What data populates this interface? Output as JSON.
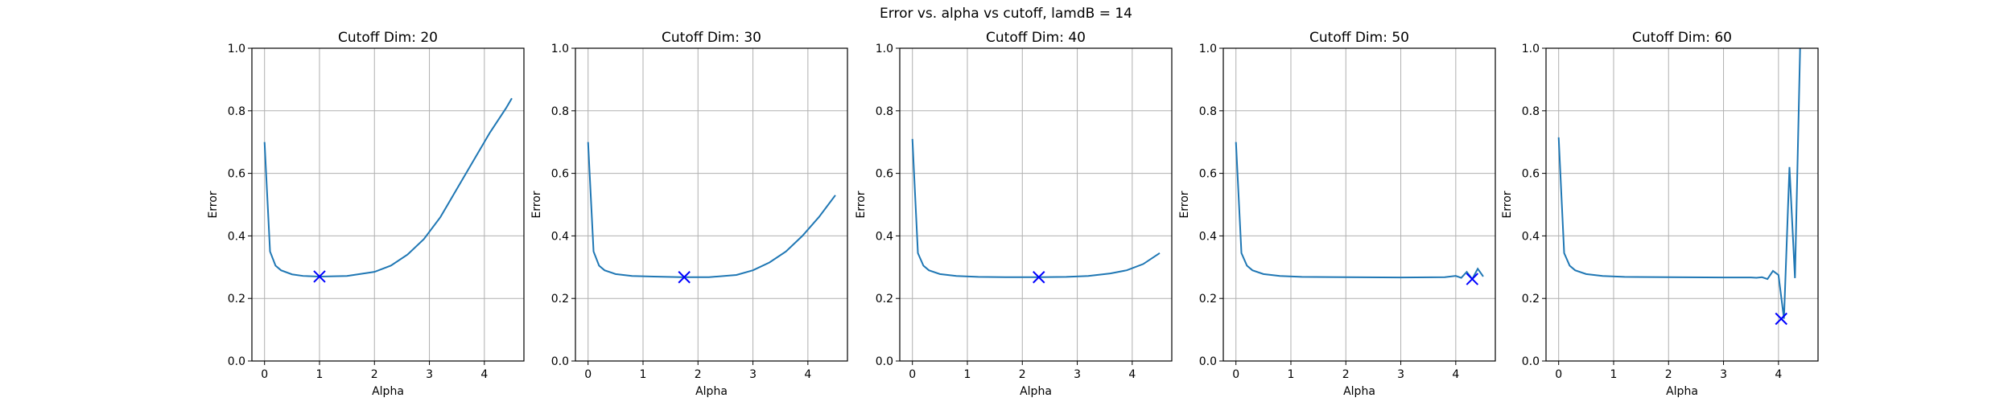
{
  "figure": {
    "suptitle": "Error vs. alpha vs cutoff, lamdB = 14"
  },
  "colors": {
    "line": "#1f77b4",
    "marker": "#0000ff",
    "grid": "#b0b0b0"
  },
  "chart_data": [
    {
      "type": "line",
      "title": "Cutoff Dim: 20",
      "xlabel": "Alpha",
      "ylabel": "Error",
      "xlim": [
        -0.23,
        4.72
      ],
      "ylim": [
        0,
        1
      ],
      "xticks": [
        0,
        1,
        2,
        3,
        4
      ],
      "yticks": [
        0.0,
        0.2,
        0.4,
        0.6,
        0.8,
        1.0
      ],
      "grid": true,
      "series": [
        {
          "x": [
            0.0,
            0.1,
            0.2,
            0.3,
            0.5,
            0.7,
            1.0,
            1.5,
            2.0,
            2.3,
            2.6,
            2.9,
            3.2,
            3.5,
            3.8,
            4.1,
            4.4,
            4.5
          ],
          "y": [
            0.7,
            0.35,
            0.305,
            0.29,
            0.277,
            0.272,
            0.27,
            0.272,
            0.285,
            0.305,
            0.34,
            0.39,
            0.46,
            0.55,
            0.64,
            0.73,
            0.81,
            0.84
          ]
        }
      ],
      "min_marker": {
        "x": 1.0,
        "y": 0.27
      }
    },
    {
      "type": "line",
      "title": "Cutoff Dim: 30",
      "xlabel": "Alpha",
      "ylabel": "Error",
      "xlim": [
        -0.23,
        4.72
      ],
      "ylim": [
        0,
        1
      ],
      "xticks": [
        0,
        1,
        2,
        3,
        4
      ],
      "yticks": [
        0.0,
        0.2,
        0.4,
        0.6,
        0.8,
        1.0
      ],
      "grid": true,
      "series": [
        {
          "x": [
            0.0,
            0.1,
            0.2,
            0.3,
            0.5,
            0.8,
            1.2,
            1.7,
            2.2,
            2.7,
            3.0,
            3.3,
            3.6,
            3.9,
            4.2,
            4.5
          ],
          "y": [
            0.7,
            0.35,
            0.305,
            0.29,
            0.278,
            0.272,
            0.27,
            0.268,
            0.268,
            0.275,
            0.29,
            0.315,
            0.35,
            0.4,
            0.46,
            0.53
          ]
        }
      ],
      "min_marker": {
        "x": 1.75,
        "y": 0.268
      }
    },
    {
      "type": "line",
      "title": "Cutoff Dim: 40",
      "xlabel": "Alpha",
      "ylabel": "Error",
      "xlim": [
        -0.23,
        4.72
      ],
      "ylim": [
        0,
        1
      ],
      "xticks": [
        0,
        1,
        2,
        3,
        4
      ],
      "yticks": [
        0.0,
        0.2,
        0.4,
        0.6,
        0.8,
        1.0
      ],
      "grid": true,
      "series": [
        {
          "x": [
            0.0,
            0.1,
            0.2,
            0.3,
            0.5,
            0.8,
            1.2,
            1.7,
            2.3,
            2.8,
            3.2,
            3.6,
            3.9,
            4.2,
            4.5
          ],
          "y": [
            0.71,
            0.345,
            0.305,
            0.29,
            0.278,
            0.272,
            0.269,
            0.268,
            0.268,
            0.269,
            0.272,
            0.28,
            0.29,
            0.31,
            0.345
          ]
        }
      ],
      "min_marker": {
        "x": 2.3,
        "y": 0.268
      }
    },
    {
      "type": "line",
      "title": "Cutoff Dim: 50",
      "xlabel": "Alpha",
      "ylabel": "Error",
      "xlim": [
        -0.23,
        4.72
      ],
      "ylim": [
        0,
        1
      ],
      "xticks": [
        0,
        1,
        2,
        3,
        4
      ],
      "yticks": [
        0.0,
        0.2,
        0.4,
        0.6,
        0.8,
        1.0
      ],
      "grid": true,
      "series": [
        {
          "x": [
            0.0,
            0.1,
            0.2,
            0.3,
            0.5,
            0.8,
            1.2,
            2.0,
            3.0,
            3.8,
            4.0,
            4.1,
            4.2,
            4.3,
            4.4,
            4.5
          ],
          "y": [
            0.7,
            0.345,
            0.305,
            0.29,
            0.278,
            0.272,
            0.269,
            0.268,
            0.267,
            0.268,
            0.272,
            0.266,
            0.285,
            0.262,
            0.295,
            0.27
          ]
        }
      ],
      "min_marker": {
        "x": 4.3,
        "y": 0.262
      }
    },
    {
      "type": "line",
      "title": "Cutoff Dim: 60",
      "xlabel": "Alpha",
      "ylabel": "Error",
      "xlim": [
        -0.23,
        4.72
      ],
      "ylim": [
        0,
        1
      ],
      "xticks": [
        0,
        1,
        2,
        3,
        4
      ],
      "yticks": [
        0.0,
        0.2,
        0.4,
        0.6,
        0.8,
        1.0
      ],
      "grid": true,
      "series": [
        {
          "x": [
            0.0,
            0.1,
            0.2,
            0.3,
            0.5,
            0.8,
            1.2,
            2.0,
            3.0,
            3.5,
            3.6,
            3.7,
            3.8,
            3.9,
            4.0,
            4.1,
            4.2,
            4.3,
            4.4
          ],
          "y": [
            0.715,
            0.345,
            0.305,
            0.29,
            0.278,
            0.272,
            0.269,
            0.268,
            0.267,
            0.267,
            0.266,
            0.268,
            0.262,
            0.288,
            0.275,
            0.135,
            0.62,
            0.265,
            1.05
          ]
        }
      ],
      "min_marker": {
        "x": 4.05,
        "y": 0.135
      }
    }
  ]
}
